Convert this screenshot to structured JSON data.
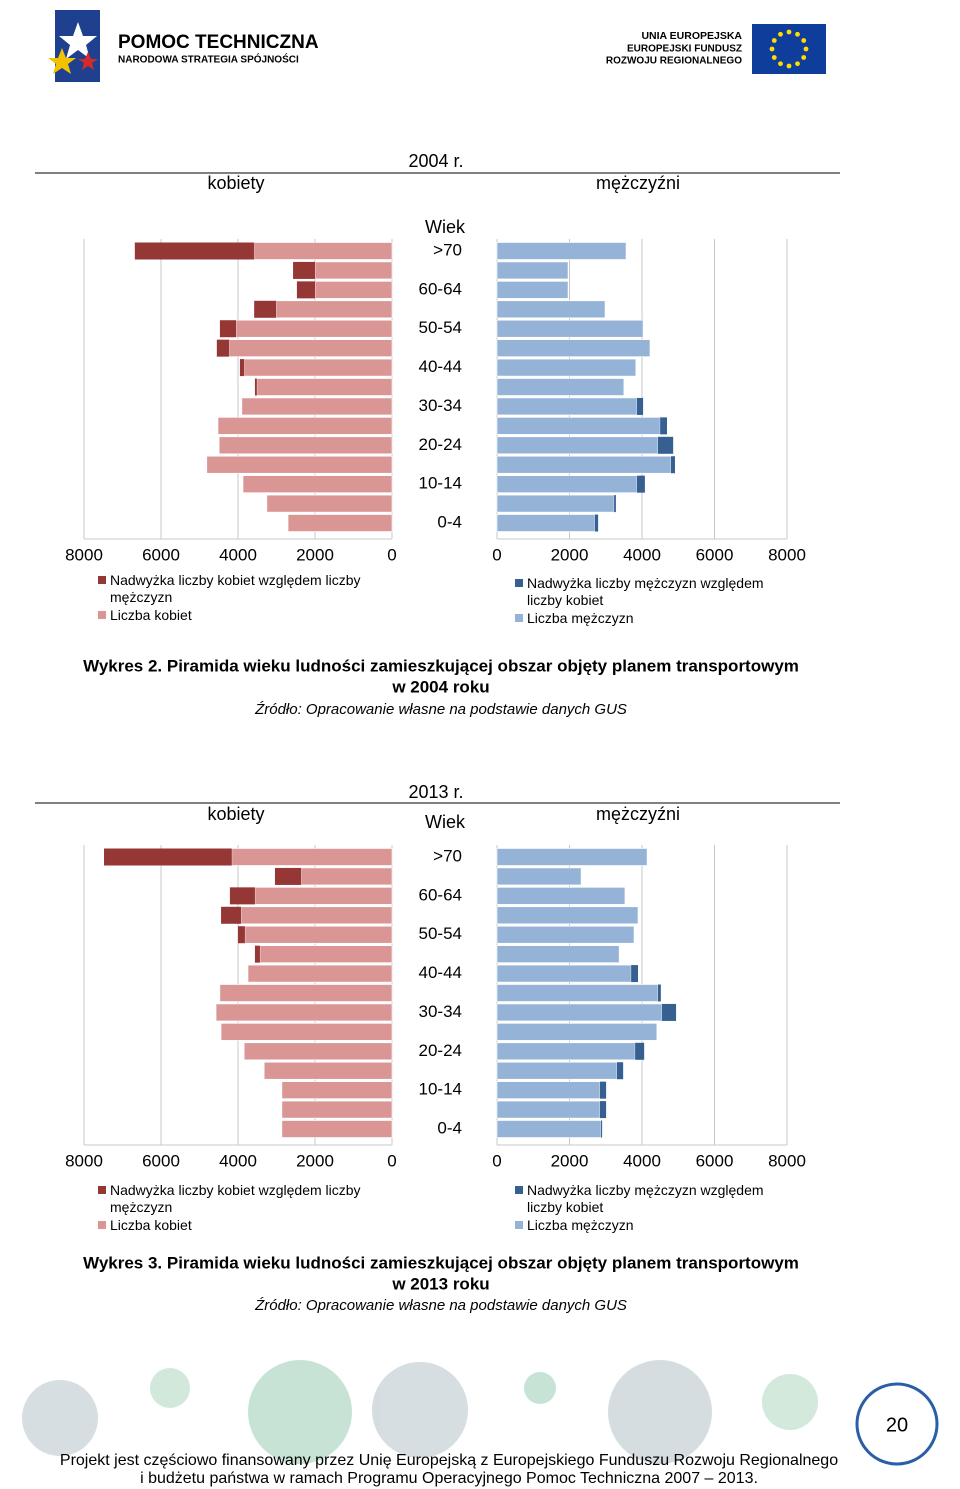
{
  "header": {
    "left_title": "POMOC TECHNICZNA",
    "left_subtitle": "NARODOWA STRATEGIA SPÓJNOŚCI",
    "right_lines": [
      "UNIA EUROPEJSKA",
      "EUROPEJSKI FUNDUSZ",
      "ROZWOJU REGIONALNEGO"
    ]
  },
  "chart_data": [
    {
      "type": "pyramid",
      "title": "2004 r.",
      "left_label": "kobiety",
      "right_label": "mężczyźni",
      "category_label": "Wiek",
      "categories": [
        ">70",
        null,
        "60-64",
        null,
        "50-54",
        null,
        "40-44",
        null,
        "30-34",
        null,
        "20-24",
        null,
        "10-14",
        null,
        "0-4"
      ],
      "left": {
        "xlim": [
          0,
          8000
        ],
        "xticks": [
          0,
          2000,
          4000,
          6000,
          8000
        ],
        "grid": true,
        "series": [
          {
            "name": "Nadwyżka liczby kobiet względem liczby mężczyzn",
            "color": "#953735",
            "values": [
              3100,
              570,
              470,
              570,
              420,
              320,
              110,
              50,
              0,
              0,
              0,
              0,
              0,
              0,
              0
            ]
          },
          {
            "name": "Liczba kobiet",
            "color": "#d99694",
            "values": [
              3580,
              2000,
              2000,
              3010,
              4050,
              4230,
              3840,
              3510,
              3900,
              4520,
              4490,
              4810,
              3870,
              3250,
              2700
            ]
          }
        ]
      },
      "right": {
        "xlim": [
          0,
          8000
        ],
        "xticks": [
          0,
          2000,
          4000,
          6000,
          8000
        ],
        "grid": true,
        "series": [
          {
            "name": "Nadwyżka liczby mężczyzn względem liczby kobiet",
            "color": "#376092",
            "values": [
              0,
              0,
              0,
              0,
              0,
              0,
              0,
              0,
              170,
              190,
              420,
              110,
              220,
              50,
              90
            ]
          },
          {
            "name": "Liczba mężczyzn",
            "color": "#95b3d7",
            "values": [
              3560,
              1960,
              1960,
              2980,
              4030,
              4220,
              3830,
              3500,
              3860,
              4500,
              4440,
              4800,
              3860,
              3230,
              2700
            ]
          }
        ]
      },
      "caption": [
        "Wykres 2. Piramida wieku ludności zamieszkującej obszar objęty planem transportowym",
        "w 2004 roku"
      ],
      "source": "Źródło: Opracowanie własne na podstawie danych GUS"
    },
    {
      "type": "pyramid",
      "title": "2013 r.",
      "left_label": "kobiety",
      "right_label": "mężczyźni",
      "category_label": "Wiek",
      "categories": [
        ">70",
        null,
        "60-64",
        null,
        "50-54",
        null,
        "40-44",
        null,
        "30-34",
        null,
        "20-24",
        null,
        "10-14",
        null,
        "0-4"
      ],
      "left": {
        "xlim": [
          0,
          8000
        ],
        "xticks": [
          0,
          2000,
          4000,
          6000,
          8000
        ],
        "grid": true,
        "series": [
          {
            "name": "Nadwyżka liczby kobiet względem liczby mężczyzn",
            "color": "#953735",
            "values": [
              3320,
              680,
              650,
              520,
              180,
              130,
              0,
              0,
              0,
              0,
              0,
              0,
              0,
              0,
              0
            ]
          },
          {
            "name": "Liczba kobiet",
            "color": "#d99694",
            "values": [
              4160,
              2360,
              3560,
              3920,
              3820,
              3430,
              3740,
              4470,
              4570,
              4440,
              3840,
              3320,
              2860,
              2860,
              2860
            ]
          }
        ]
      },
      "right": {
        "xlim": [
          0,
          8000
        ],
        "xticks": [
          0,
          2000,
          4000,
          6000,
          8000
        ],
        "grid": true,
        "series": [
          {
            "name": "Nadwyżka liczby mężczyzn względem liczby kobiet",
            "color": "#376092",
            "values": [
              0,
              0,
              0,
              0,
              0,
              0,
              190,
              80,
              390,
              0,
              250,
              170,
              170,
              170,
              30
            ]
          },
          {
            "name": "Liczba mężczyzn",
            "color": "#95b3d7",
            "values": [
              4140,
              2320,
              3530,
              3890,
              3780,
              3370,
              3700,
              4440,
              4550,
              4410,
              3810,
              3310,
              2840,
              2840,
              2870
            ]
          }
        ]
      },
      "caption": [
        "Wykres 3. Piramida wieku ludności zamieszkującej obszar objęty planem transportowym",
        "w 2013 roku"
      ],
      "source": "Źródło: Opracowanie własne na podstawie danych GUS"
    }
  ],
  "footer": {
    "page": "20",
    "lines": [
      "Projekt jest częściowo finansowany przez Unię Europejską z Europejskiego Funduszu Rozwoju Regionalnego",
      "i budżetu państwa w ramach Programu Operacyjnego Pomoc Techniczna 2007 – 2013."
    ]
  }
}
